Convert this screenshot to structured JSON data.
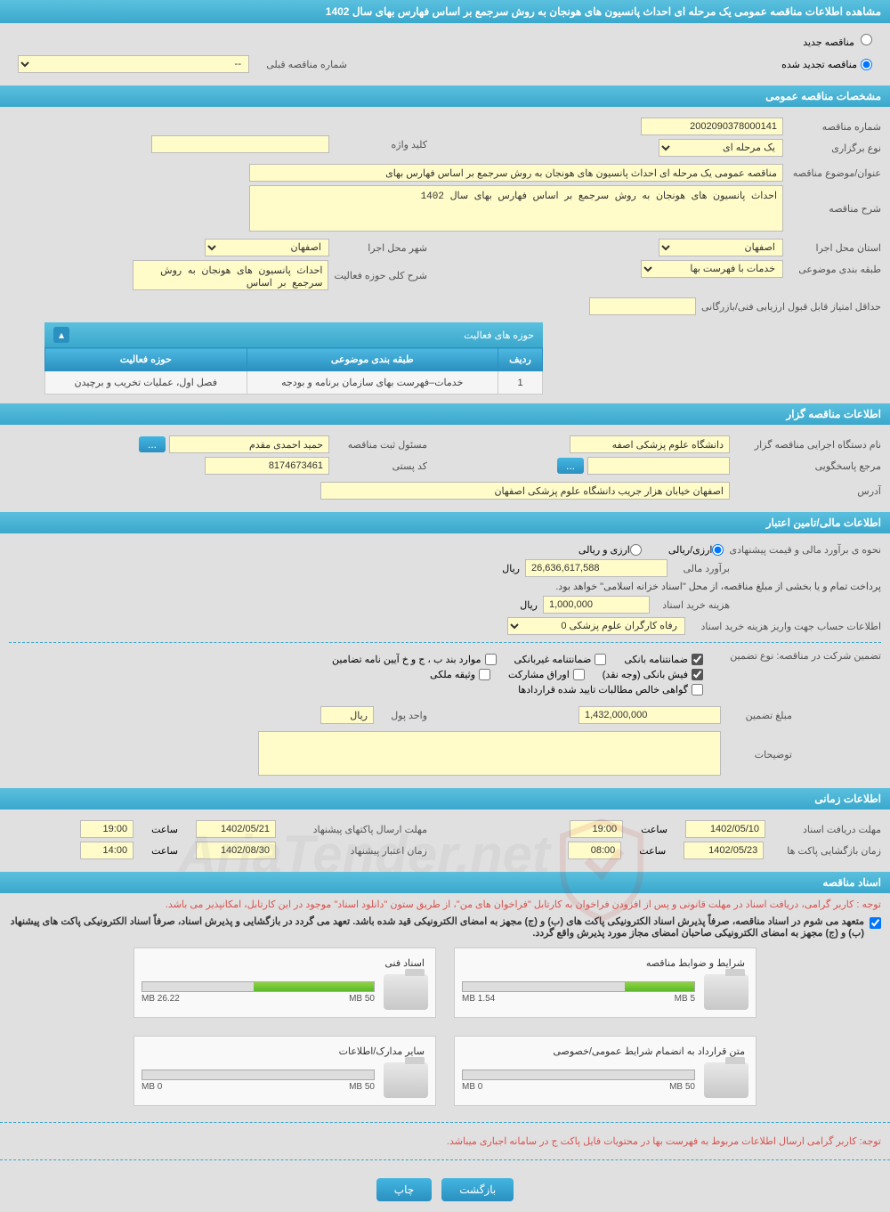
{
  "title": "مشاهده اطلاعات مناقصه عمومی یک مرحله ای احداث پانسیون های هونجان به روش سرجمع بر اساس فهارس بهای سال 1402",
  "radio": {
    "new": "مناقصه جدید",
    "renewed": "مناقصه تجدید شده",
    "prev_label": "شماره مناقصه قبلی",
    "prev_value": "--"
  },
  "sec1": {
    "title": "مشخصات مناقصه عمومی",
    "tender_no_label": "شماره مناقصه",
    "tender_no": "2002090378000141",
    "type_label": "نوع برگزاری",
    "type": "یک مرحله ای",
    "keyword_label": "کلید واژه",
    "keyword": "",
    "subject_label": "عنوان/موضوع مناقصه",
    "subject": "مناقصه عمومی یک مرحله ای احداث پانسیون های هونجان به روش سرجمع بر اساس فهارس بهای",
    "desc_label": "شرح مناقصه",
    "desc": "احداث پانسیون های هونجان به روش سرجمع بر اساس فهارس بهای سال 1402",
    "province_label": "استان محل اجرا",
    "province": "اصفهان",
    "city_label": "شهر محل اجرا",
    "city": "اصفهان",
    "class_label": "طبقه بندی موضوعی",
    "class": "خدمات با فهرست بها",
    "activity_desc_label": "شرح کلی حوزه فعالیت",
    "activity_desc": "احداث پانسیون های هونجان به روش سرجمع بر اساس",
    "min_score_label": "حداقل امتیاز قابل قبول ارزیابی فنی/بازرگانی",
    "min_score": ""
  },
  "activity_table": {
    "title": "حوزه های فعالیت",
    "headers": [
      "ردیف",
      "طبقه بندی موضوعی",
      "حوزه فعالیت"
    ],
    "rows": [
      [
        "1",
        "خدمات–فهرست بهای سازمان برنامه و بودجه",
        "فصل اول، عملیات تخریب و برچیدن"
      ]
    ]
  },
  "sec2": {
    "title": "اطلاعات مناقصه گزار",
    "org_label": "نام دستگاه اجرایی مناقصه گزار",
    "org": "دانشگاه علوم پزشکی اصفه",
    "reg_user_label": "مسئول ثبت مناقصه",
    "reg_user": "حمید احمدی مقدم",
    "contact_label": "مرجع پاسخگویی",
    "contact": "",
    "postal_label": "کد پستی",
    "postal": "8174673461",
    "address_label": "آدرس",
    "address": "اصفهان خیابان هزار جریب دانشگاه علوم پزشکی اصفهان"
  },
  "sec3": {
    "title": "اطلاعات مالی/تامین اعتبار",
    "est_method_label": "نحوه ی برآورد مالی و قیمت پیشنهادی",
    "radio_arzi_riali": "ارزی/ریالی",
    "radio_arzi_o_riali": "ارزی و ریالی",
    "est_label": "برآورد مالی",
    "est": "26,636,617,588",
    "rial": "ریال",
    "payment_note": "پرداخت تمام و یا بخشی از مبلغ مناقصه، از محل \"اسناد خزانه اسلامی\" خواهد بود.",
    "doc_fee_label": "هزینه خرید اسناد",
    "doc_fee": "1,000,000",
    "account_label": "اطلاعات حساب جهت واریز هزینه خرید اسناد",
    "account": "رفاه کارگران علوم پزشکی 0",
    "guarantee_label": "تضمین شرکت در مناقصه:    نوع تضمین",
    "gt_bank": "ضمانتنامه بانکی",
    "gt_nonbank": "ضمانتنامه غیربانکی",
    "gt_b": "موارد بند ب ، ج و خ آیین نامه تضامین",
    "gt_fish": "فیش بانکی (وجه نقد)",
    "gt_oragh": "اوراق مشارکت",
    "gt_vasighe": "وثیقه ملکی",
    "gt_govahi": "گواهی خالص مطالبات تایید شده قراردادها",
    "g_amount_label": "مبلغ تضمین",
    "g_amount": "1,432,000,000",
    "unit_label": "واحد پول",
    "notes_label": "توضیحات"
  },
  "sec4": {
    "title": "اطلاعات زمانی",
    "recv_label": "مهلت دریافت اسناد",
    "recv_date": "1402/05/10",
    "recv_time": "19:00",
    "send_label": "مهلت ارسال پاکتهای پیشنهاد",
    "send_date": "1402/05/21",
    "send_time": "19:00",
    "open_label": "زمان بازگشایی پاکت ها",
    "open_date": "1402/05/23",
    "open_time": "08:00",
    "valid_label": "زمان اعتبار پیشنهاد",
    "valid_date": "1402/08/30",
    "valid_time": "14:00",
    "time_label": "ساعت"
  },
  "sec5": {
    "title": "اسناد مناقصه",
    "warn1": "توجه : کاربر گرامی، دریافت اسناد در مهلت قانونی و پس از افزودن فراخوان به کارتابل \"فراخوان های من\"، از طریق ستون \"دانلود اسناد\" موجود در این کارتابل، امکانپذیر می باشد.",
    "warn2": "متعهد می شوم در اسناد مناقصه، صرفاً پذیرش اسناد الکترونیکی پاکت های (ب) و (ج) مجهز به امضای الکترونیکی قید شده باشد. تعهد می گردد در بازگشایی و پذیرش اسناد، صرفاً اسناد الکترونیکی پاکت های پیشنهاد (ب) و (ج) مجهز به امضای الکترونیکی صاحبان امضای مجاز مورد پذیرش واقع گردد.",
    "docs": [
      {
        "title": "شرایط و ضوابط مناقصه",
        "used": "1.54 MB",
        "total": "5 MB",
        "pct": 30
      },
      {
        "title": "اسناد فنی",
        "used": "26.22 MB",
        "total": "50 MB",
        "pct": 52
      },
      {
        "title": "متن قرارداد به انضمام شرایط عمومی/خصوصی",
        "used": "0 MB",
        "total": "50 MB",
        "pct": 0
      },
      {
        "title": "سایر مدارک/اطلاعات",
        "used": "0 MB",
        "total": "50 MB",
        "pct": 0
      }
    ],
    "warn3": "توجه: کاربر گرامی ارسال اطلاعات مربوط به فهرست بها در محتویات فایل پاکت ج در سامانه اجباری میباشد."
  },
  "buttons": {
    "back": "بازگشت",
    "print": "چاپ"
  },
  "watermark": "AriaTender.net",
  "colors": {
    "header_grad_start": "#5bc0de",
    "header_grad_end": "#3aa8cc",
    "yellow": "#fffcc9",
    "warn": "#d9534f"
  }
}
